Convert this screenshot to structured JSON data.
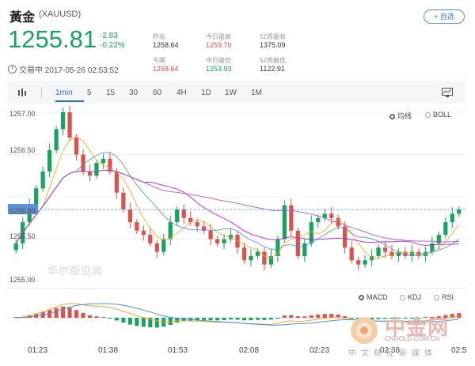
{
  "header": {
    "title": "黃金",
    "symbol": "(XAUUSD)",
    "add_label": "+ 自选"
  },
  "quote": {
    "price": "1255.81",
    "change": "-2.83",
    "change_pct": "-0.22%",
    "trade_time": "交易中 2017-05-26 02:53:52"
  },
  "stats": [
    {
      "label": "昨收",
      "value": "1258.64"
    },
    {
      "label": "今開",
      "value": "1258.64"
    },
    {
      "label": "今日最高",
      "value": "1259.70"
    },
    {
      "label": "今日最低",
      "value": "1253.93"
    },
    {
      "label": "52周最高",
      "value": "1375.09"
    },
    {
      "label": "52周最低",
      "value": "1122.91"
    }
  ],
  "toolbar": {
    "chart_icon": "candlestick-icon",
    "tabs": [
      "1min",
      "5",
      "15",
      "30",
      "60",
      "4H",
      "1D",
      "1W",
      "1M"
    ],
    "active_tab": "1min",
    "settings_icon": "monitor-icon"
  },
  "main_chart": {
    "options": [
      "均线",
      "BOLL"
    ],
    "selected": "均线",
    "y_labels": [
      "1257.00",
      "1256.50",
      "1255.80",
      "1255.50",
      "1255.00"
    ],
    "watermark": "华尔街见闻"
  },
  "indicator": {
    "options": [
      "MACD",
      "KDJ",
      "RSI"
    ],
    "selected": "MACD"
  },
  "x_labels": [
    "01:23",
    "01:38",
    "01:53",
    "02:08",
    "02:23",
    "02:38",
    "02:5"
  ],
  "brand": {
    "name": "中金网",
    "url": "CNGOLD.COM.CN",
    "sub": "中文财经新媒体"
  },
  "colors": {
    "up": "#1aa260",
    "down": "#d9534f",
    "accent": "#2f6fd0"
  },
  "chart_data": {
    "type": "candlestick",
    "ylim": [
      1255.0,
      1257.0
    ],
    "close_series": [
      1255.45,
      1255.7,
      1255.9,
      1256.1,
      1256.3,
      1256.55,
      1256.8,
      1257.0,
      1256.7,
      1256.5,
      1256.3,
      1256.25,
      1256.4,
      1256.45,
      1256.3,
      1256.05,
      1255.85,
      1255.7,
      1255.6,
      1255.55,
      1255.45,
      1255.35,
      1255.5,
      1255.7,
      1255.85,
      1255.75,
      1255.7,
      1255.65,
      1255.6,
      1255.5,
      1255.45,
      1255.5,
      1255.55,
      1255.4,
      1255.25,
      1255.3,
      1255.35,
      1255.2,
      1255.3,
      1255.5,
      1255.9,
      1255.6,
      1255.3,
      1255.45,
      1255.7,
      1255.75,
      1255.8,
      1255.75,
      1255.65,
      1255.4,
      1255.25,
      1255.2,
      1255.25,
      1255.3,
      1255.4,
      1255.35,
      1255.3,
      1255.35,
      1255.3,
      1255.35,
      1255.3,
      1255.35,
      1255.45,
      1255.55,
      1255.7,
      1255.8,
      1255.85
    ]
  }
}
